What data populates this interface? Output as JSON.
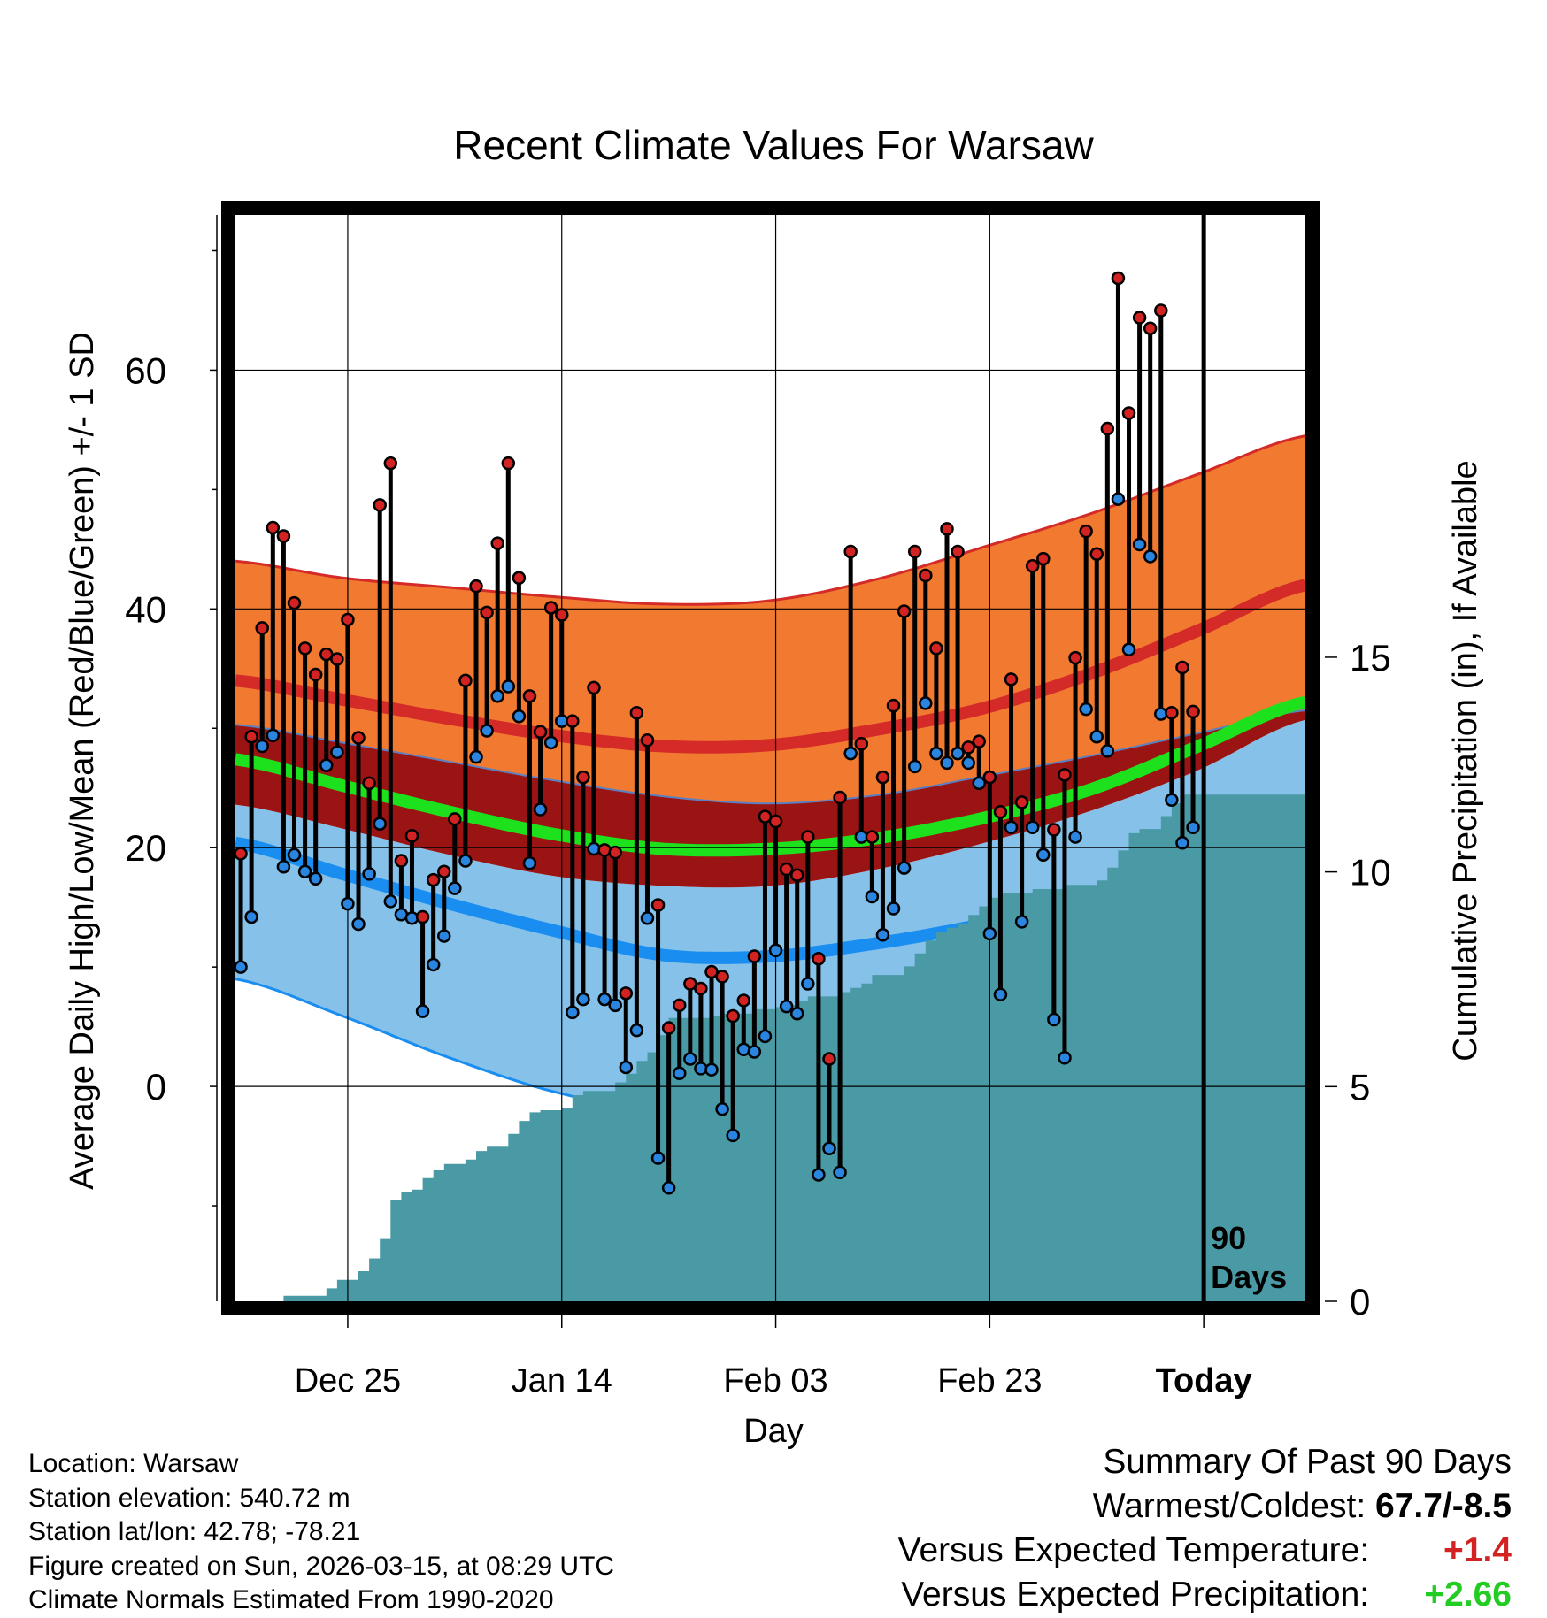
{
  "chart_data": {
    "type": "line",
    "title": "Recent Climate Values For Warsaw",
    "xlabel": "Day",
    "ylabel_left": "Average Daily High/Low/Mean (Red/Blue/Green) +/- 1 SD",
    "ylabel_right": "Cumulative Precipitation (in), If Available",
    "x_ticks": [
      {
        "day": 10.5,
        "label": "Dec 25"
      },
      {
        "day": 30.5,
        "label": "Jan 14"
      },
      {
        "day": 50.5,
        "label": "Feb 03"
      },
      {
        "day": 70.5,
        "label": "Feb 23"
      },
      {
        "day": 90.5,
        "label": "Today"
      }
    ],
    "xlim": [
      0,
      100
    ],
    "ylim_temp": [
      -18,
      73
    ],
    "y_ticks_temp": [
      0,
      20,
      40,
      60
    ],
    "y_minor_ticks_temp": [
      -10,
      10,
      30,
      50,
      70
    ],
    "ylim_precip": [
      0,
      25.3
    ],
    "y_ticks_precip": [
      0,
      5,
      10,
      15
    ],
    "today_marker_label": "90\nDays",
    "today_day": 90.5,
    "normals": {
      "days": [
        0,
        10,
        20,
        30,
        40,
        50,
        60,
        70,
        80,
        90,
        100
      ],
      "high_mean": [
        34.0,
        32.4,
        30.8,
        29.4,
        28.5,
        28.6,
        29.9,
        31.7,
        34.6,
        38.2,
        42.0
      ],
      "high_sd_upper": [
        44.0,
        42.6,
        41.8,
        41.0,
        40.4,
        40.7,
        42.5,
        45.2,
        48.0,
        51.3,
        54.5
      ],
      "high_sd_lower": [
        30.3,
        28.8,
        27.2,
        25.6,
        24.3,
        23.7,
        24.4,
        26.0,
        27.7,
        29.6,
        31.5
      ],
      "mean": [
        27.4,
        25.2,
        23.0,
        21.1,
        19.9,
        19.9,
        20.8,
        22.5,
        24.9,
        28.5,
        32.2
      ],
      "low_sd_upper": [
        23.6,
        21.6,
        19.4,
        17.6,
        16.8,
        16.8,
        18.2,
        20.4,
        23.1,
        26.5,
        30.7
      ],
      "low_mean": [
        20.4,
        17.8,
        15.3,
        13.0,
        11.0,
        10.9,
        12.0,
        13.6,
        15.6,
        18.6,
        22.0
      ],
      "low_sd_lower": [
        9.0,
        5.9,
        2.4,
        -0.5,
        -2.1,
        -2.0,
        -1.1,
        0.4,
        2.6,
        6.2,
        11.3
      ]
    },
    "series": [
      {
        "name": "Daily High",
        "color": "#d22222",
        "values": [
          19.5,
          29.3,
          38.4,
          46.8,
          46.1,
          40.5,
          36.7,
          34.5,
          36.2,
          35.8,
          39.1,
          29.2,
          25.4,
          48.7,
          52.2,
          18.9,
          21.0,
          14.2,
          17.3,
          18.0,
          22.4,
          34.0,
          41.9,
          39.7,
          45.5,
          52.2,
          42.6,
          32.7,
          29.7,
          40.1,
          39.5,
          30.6,
          25.9,
          33.4,
          19.8,
          19.6,
          7.8,
          31.3,
          29.0,
          15.2,
          4.9,
          6.8,
          8.6,
          8.2,
          9.6,
          9.2,
          5.9,
          7.2,
          10.9,
          22.6,
          22.2,
          18.2,
          17.7,
          20.9,
          10.7,
          2.3,
          24.2,
          44.8,
          28.7,
          20.9,
          25.9,
          31.9,
          39.8,
          44.8,
          42.8,
          36.7,
          46.7,
          44.8,
          28.4,
          28.9,
          25.9,
          23.0,
          34.1,
          23.8,
          43.6,
          44.2,
          21.5,
          26.1,
          35.9,
          46.5,
          44.6,
          55.1,
          67.7,
          56.4,
          64.4,
          63.5,
          65.0,
          31.3,
          35.1,
          31.4
        ]
      },
      {
        "name": "Daily Low",
        "color": "#2a85e0",
        "values": [
          10.0,
          14.2,
          28.5,
          29.4,
          18.4,
          19.4,
          18.0,
          17.4,
          26.9,
          28.0,
          15.3,
          13.6,
          17.8,
          22.0,
          15.5,
          14.4,
          14.1,
          6.3,
          10.2,
          12.6,
          16.6,
          18.9,
          27.6,
          29.8,
          32.7,
          33.5,
          31.0,
          18.7,
          23.2,
          28.8,
          30.6,
          6.2,
          7.3,
          19.9,
          7.3,
          6.8,
          1.6,
          4.7,
          14.1,
          -6.0,
          -8.5,
          1.1,
          2.3,
          1.5,
          1.4,
          -1.9,
          -4.1,
          3.1,
          2.9,
          4.2,
          11.4,
          6.7,
          6.1,
          8.6,
          -7.4,
          -5.2,
          -7.2,
          27.9,
          20.9,
          15.9,
          12.7,
          14.9,
          18.3,
          26.8,
          32.1,
          27.9,
          27.1,
          27.9,
          27.1,
          25.4,
          12.8,
          7.7,
          21.7,
          13.8,
          21.7,
          19.4,
          5.6,
          2.4,
          20.9,
          31.6,
          29.3,
          28.1,
          49.2,
          36.6,
          45.4,
          44.4,
          31.2,
          24.0,
          20.4,
          21.7
        ]
      },
      {
        "name": "Cumulative Precipitation (in)",
        "color": "#4a9aa5",
        "values": [
          0,
          0,
          0,
          0,
          0.13,
          0.13,
          0.13,
          0.13,
          0.3,
          0.5,
          0.5,
          0.7,
          1.0,
          1.45,
          2.35,
          2.55,
          2.6,
          2.87,
          3.05,
          3.2,
          3.2,
          3.3,
          3.5,
          3.6,
          3.6,
          3.9,
          4.2,
          4.4,
          4.45,
          4.45,
          4.5,
          4.8,
          4.9,
          4.9,
          4.9,
          5.1,
          5.3,
          5.6,
          5.8,
          6.2,
          6.6,
          6.6,
          6.6,
          6.6,
          6.65,
          6.7,
          6.7,
          6.7,
          6.8,
          6.8,
          6.85,
          6.9,
          7.0,
          7.1,
          7.1,
          7.1,
          7.2,
          7.3,
          7.4,
          7.6,
          7.6,
          7.6,
          7.8,
          8.1,
          8.4,
          8.6,
          8.7,
          8.8,
          9.0,
          9.2,
          9.4,
          9.5,
          9.5,
          9.5,
          9.6,
          9.6,
          9.6,
          9.7,
          9.7,
          9.7,
          9.8,
          10.1,
          10.5,
          10.9,
          11.0,
          11.0,
          11.3,
          11.6,
          11.8,
          11.8
        ]
      }
    ],
    "colors": {
      "high_band": "#f17a30",
      "high_line": "#d42a28",
      "mid_band": "#9a1414",
      "mean_line": "#1de11d",
      "low_band": "#85c1e8",
      "low_line": "#1a8ef0",
      "precip_fill": "#4a9aa5"
    }
  },
  "summary": {
    "heading": "Summary Of Past 90 Days",
    "warmest_coldest_label": "Warmest/Coldest:",
    "warmest_coldest_value": "67.7/-8.5",
    "temp_label": "Versus Expected Temperature:",
    "temp_value": "+1.4",
    "temp_color": "#d22222",
    "precip_label": "Versus Expected Precipitation:",
    "precip_value": "+2.66",
    "precip_color": "#22cc22"
  },
  "info": {
    "location": "Location: Warsaw",
    "elevation": "Station elevation: 540.72 m",
    "latlon": "Station lat/lon: 42.78; -78.21",
    "created": "Figure created on Sun, 2026-03-15, at 08:29 UTC",
    "normals": "Climate Normals Estimated From 1990-2020"
  }
}
